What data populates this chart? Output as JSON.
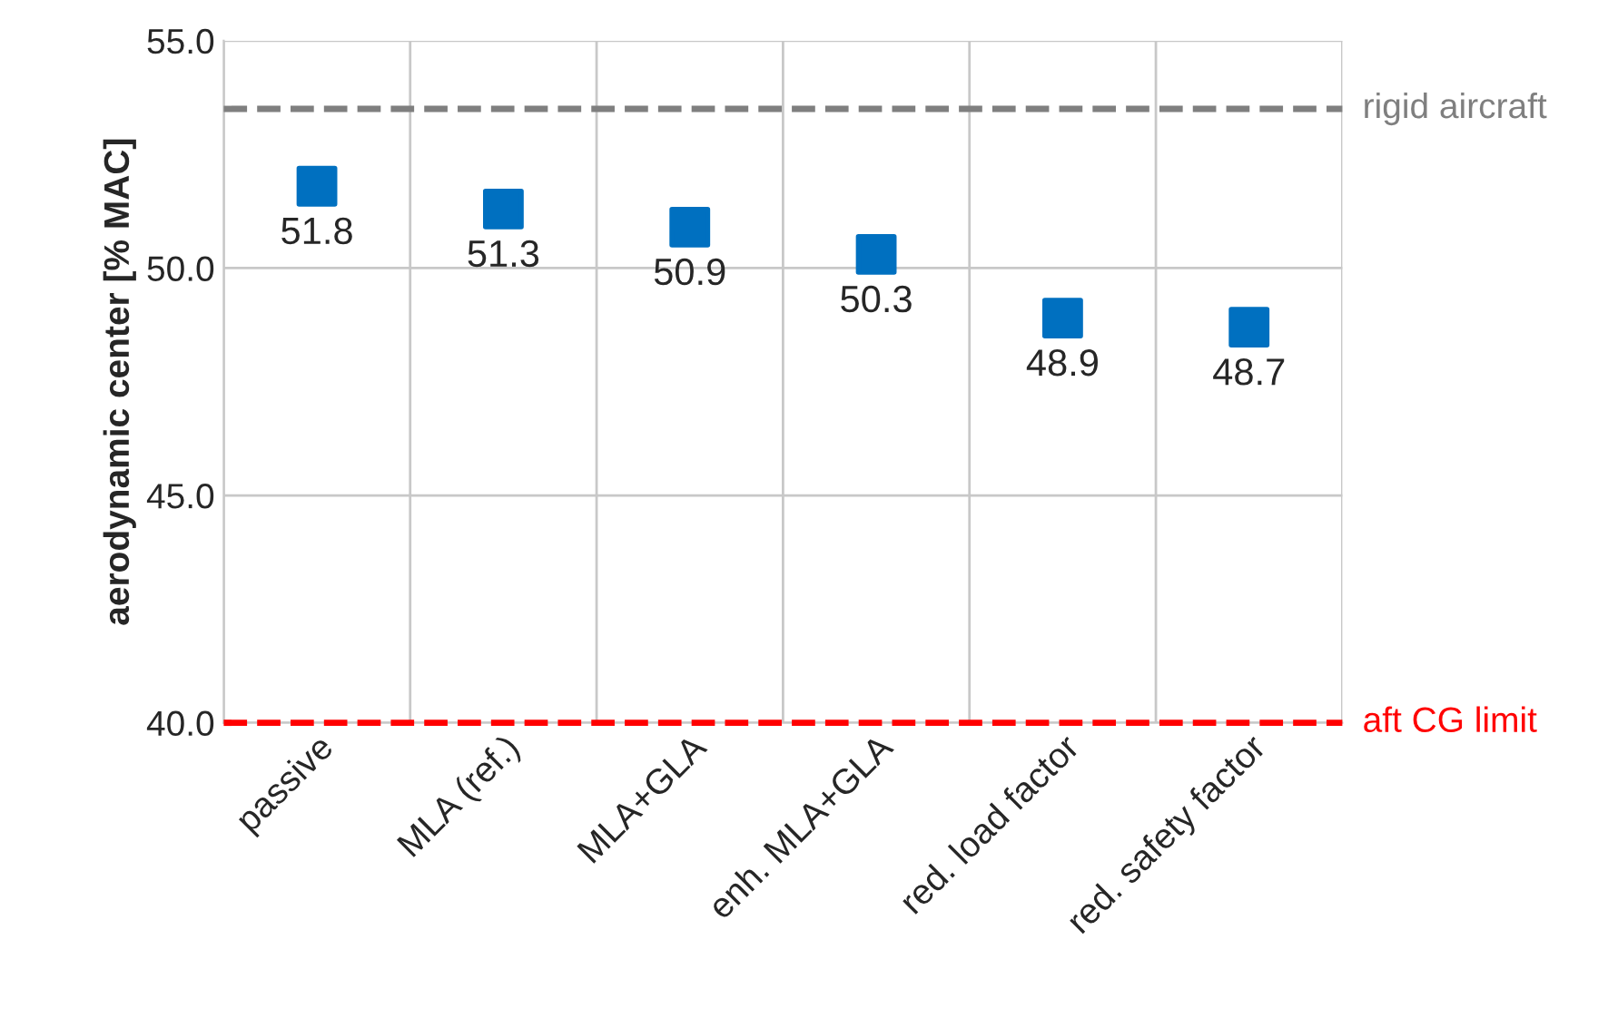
{
  "chart_data": {
    "type": "scatter",
    "ylabel": "aerodynamic center [% MAC]",
    "categories": [
      "passive",
      "MLA (ref.)",
      "MLA+GLA",
      "enh. MLA+GLA",
      "red. load factor",
      "red. safety factor"
    ],
    "series": [
      {
        "color": "#0070c0",
        "values": [
          51.8,
          51.3,
          50.9,
          50.3,
          48.9,
          48.7
        ]
      }
    ],
    "ylim": [
      40,
      55
    ],
    "yticks": [
      {
        "value": 40,
        "label": "40.0"
      },
      {
        "value": 45,
        "label": "45.0"
      },
      {
        "value": 50,
        "label": "50.0"
      },
      {
        "value": 55,
        "label": "55.0"
      }
    ],
    "ref_lines": [
      {
        "axis": "y",
        "value": 53.5,
        "label": "rigid aircraft",
        "color": "#7f7f7f",
        "line_style": "dashed"
      },
      {
        "axis": "y",
        "value": 40,
        "label": "aft CG limit",
        "color": "#ff0000",
        "line_style": "dashed"
      }
    ],
    "grid": true,
    "marker": "square",
    "data_labels": true
  }
}
